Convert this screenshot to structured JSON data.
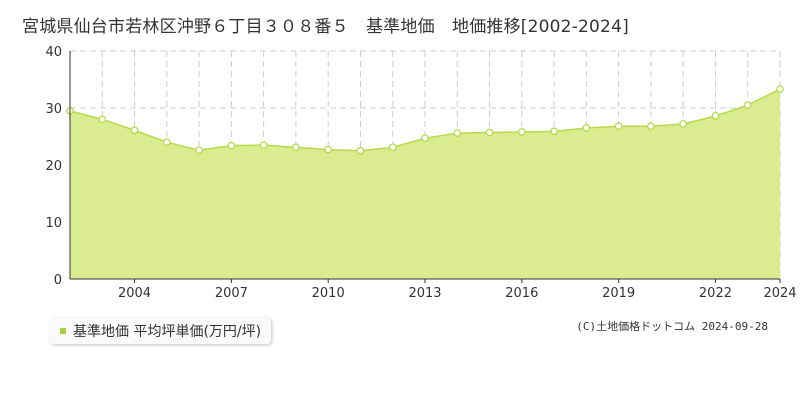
{
  "title": "宮城県仙台市若林区沖野６丁目３０８番５　基準地価　地価推移[2002-2024]",
  "legend_label": "基準地価 平均坪単価(万円/坪)",
  "credit": "(C)土地価格ドットコム 2024-09-28",
  "colors": {
    "fill": "#dbeb90",
    "line": "#b8d94a",
    "point_fill": "#ffffff",
    "grid": "#cccccc",
    "swatch": "#a8cf45"
  },
  "chart_data": {
    "type": "area",
    "title": "",
    "xlabel": "",
    "ylabel": "",
    "x": [
      2002,
      2003,
      2004,
      2005,
      2006,
      2007,
      2008,
      2009,
      2010,
      2011,
      2012,
      2013,
      2014,
      2015,
      2016,
      2017,
      2018,
      2019,
      2020,
      2021,
      2022,
      2023,
      2024
    ],
    "values": [
      29.5,
      28.0,
      26.1,
      24.0,
      22.6,
      23.4,
      23.5,
      23.1,
      22.7,
      22.5,
      23.1,
      24.7,
      25.6,
      25.7,
      25.8,
      25.9,
      26.5,
      26.8,
      26.8,
      27.2,
      28.6,
      30.5,
      33.3
    ],
    "xticks": [
      "2004",
      "2007",
      "2010",
      "2013",
      "2016",
      "2019",
      "2022",
      "2024"
    ],
    "xtick_values": [
      2004,
      2007,
      2010,
      2013,
      2016,
      2019,
      2022,
      2024
    ],
    "yticks": [
      "0",
      "10",
      "20",
      "30",
      "40"
    ],
    "ytick_values": [
      0,
      10,
      20,
      30,
      40
    ],
    "ylim": [
      0,
      40
    ],
    "xlim": [
      2002,
      2024
    ],
    "grid": true
  }
}
